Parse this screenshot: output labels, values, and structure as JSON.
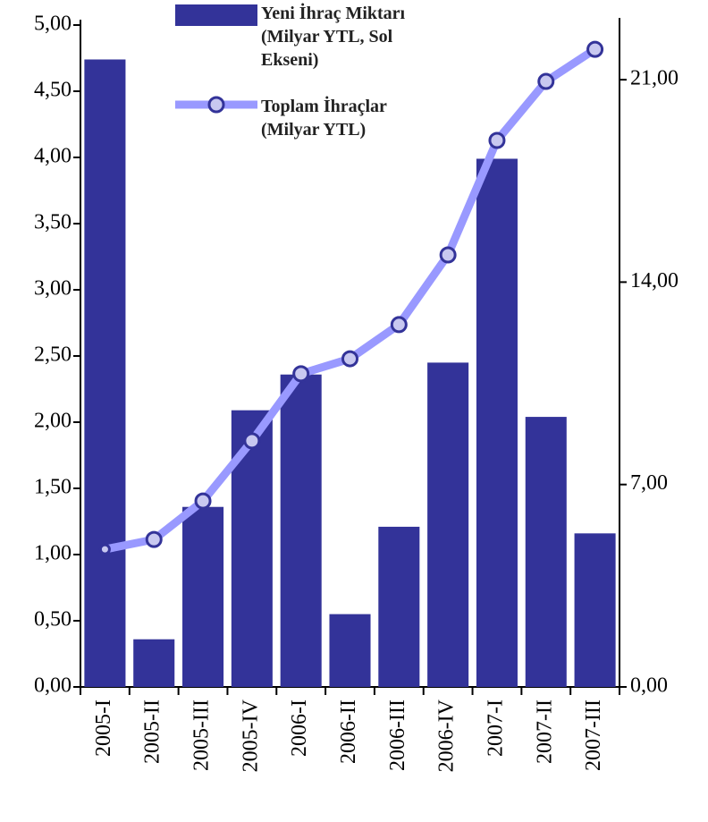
{
  "chart_data": {
    "type": "bar-line",
    "categories": [
      "2005-I",
      "2005-II",
      "2005-III",
      "2005-IV",
      "2006-I",
      "2006-II",
      "2006-III",
      "2006-IV",
      "2007-I",
      "2007-II",
      "2007-III"
    ],
    "series": [
      {
        "name": "Yeni İhraç Miktarı (Milyar YTL, Sol Ekseni)",
        "color": "#333399",
        "type": "bar",
        "values": [
          4.74,
          0.36,
          1.36,
          2.09,
          2.36,
          0.55,
          1.21,
          2.45,
          3.99,
          2.04,
          1.16
        ]
      },
      {
        "name": "Toplam İhraçlar (Milyar YTL)",
        "color": "#9999ff",
        "type": "line",
        "axis": "y2",
        "values": [
          4.76,
          5.1,
          6.43,
          8.51,
          10.83,
          11.35,
          12.53,
          14.94,
          18.9,
          20.94,
          22.05
        ]
      }
    ],
    "ylim": [
      0,
      5
    ],
    "yticks": [
      {
        "value": 0,
        "label": "0,00"
      },
      {
        "value": 0.5,
        "label": "0,50"
      },
      {
        "value": 1,
        "label": "1,00"
      },
      {
        "value": 1.5,
        "label": "1,50"
      },
      {
        "value": 2,
        "label": "2,00"
      },
      {
        "value": 2.5,
        "label": "2,50"
      },
      {
        "value": 3,
        "label": "3,00"
      },
      {
        "value": 3.5,
        "label": "3,50"
      },
      {
        "value": 4,
        "label": "4,00"
      },
      {
        "value": 4.5,
        "label": "4,50"
      },
      {
        "value": 5,
        "label": "5,00"
      }
    ],
    "y2lim": [
      0,
      22.89
    ],
    "y2ticks": [
      {
        "value": 0,
        "label": "0,00"
      },
      {
        "value": 7,
        "label": "7,00"
      },
      {
        "value": 14,
        "label": "14,00"
      },
      {
        "value": 21,
        "label": "21,00"
      }
    ],
    "grid": false
  }
}
